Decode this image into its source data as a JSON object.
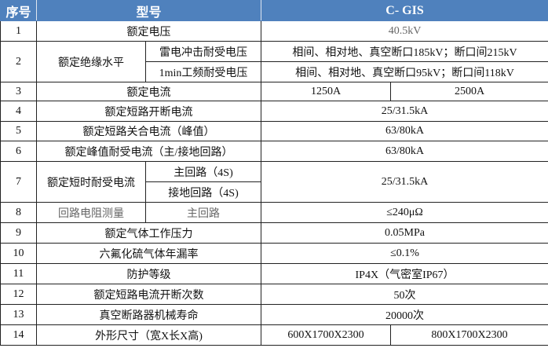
{
  "header": {
    "index": "序号",
    "model": "型号",
    "product": "C- GIS"
  },
  "colors": {
    "header_bg": "#4f81bd",
    "header_text": "#ffffff"
  },
  "rows": [
    {
      "no": "1",
      "param": "额定电压",
      "value": "40.5kV"
    },
    {
      "no": "2",
      "param": "额定绝缘水平",
      "sub": [
        {
          "label": "雷电冲击耐受电压",
          "value": "相间、相对地、真空断口185kV；断口间215kV"
        },
        {
          "label": "1min工频耐受电压",
          "value": "相间、相对地、真空断口95kV；断口间118kV"
        }
      ]
    },
    {
      "no": "3",
      "param": "额定电流",
      "values": [
        "1250A",
        "2500A"
      ]
    },
    {
      "no": "4",
      "param": "额定短路开断电流",
      "value": "25/31.5kA"
    },
    {
      "no": "5",
      "param": "额定短路关合电流（峰值）",
      "value": "63/80kA"
    },
    {
      "no": "6",
      "param": "额定峰值耐受电流（主/接地回路）",
      "value": "63/80kA"
    },
    {
      "no": "7",
      "param": "额定短时耐受电流",
      "sub": [
        {
          "label": "主回路（4S)"
        },
        {
          "label": "接地回路（4S)"
        }
      ],
      "value": "25/31.5kA"
    },
    {
      "no": "8",
      "param": "回路电阻测量",
      "sub": [
        {
          "label": "主回路"
        }
      ],
      "value": "≤240μΩ"
    },
    {
      "no": "9",
      "param": "额定气体工作压力",
      "value": "0.05MPa"
    },
    {
      "no": "10",
      "param": "六氟化硫气体年漏率",
      "value": "≤0.1%"
    },
    {
      "no": "11",
      "param": "防护等级",
      "value": "IP4X（气密室IP67）"
    },
    {
      "no": "12",
      "param": "额定短路电流开断次数",
      "value": "50次"
    },
    {
      "no": "13",
      "param": "真空断路器机械寿命",
      "value": "20000次"
    },
    {
      "no": "14",
      "param": "外形尺寸（宽X长X高)",
      "values": [
        "600X1700X2300",
        "800X1700X2300"
      ]
    }
  ]
}
